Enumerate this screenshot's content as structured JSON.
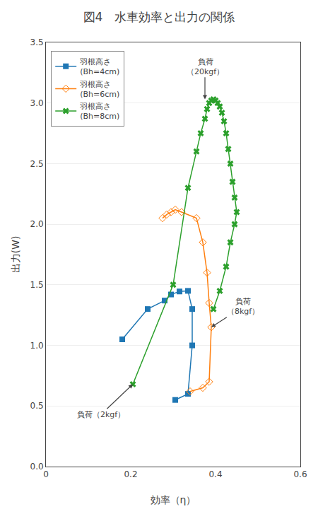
{
  "chart_data": {
    "type": "line",
    "title": "図4　水車効率と出力の関係",
    "x_label": "効率（η）",
    "y_label": "出力(W)",
    "xlim": [
      0,
      0.6
    ],
    "ylim": [
      0.0,
      3.5
    ],
    "xticks": [
      0,
      0.2,
      0.4,
      0.6
    ],
    "yticks": [
      {
        "value": 0.0,
        "label": "0.0"
      },
      0.5,
      {
        "value": 1.0,
        "label": "1.0"
      },
      1.5,
      {
        "value": 2.0,
        "label": "2.0"
      },
      2.5,
      {
        "value": 3.0,
        "label": "3.0"
      },
      3.5
    ],
    "grid": "y",
    "legend": "upper left",
    "series": [
      {
        "name": "羽根高さ\n(Bh=4cm)",
        "marker": "square",
        "x": [
          0.18,
          0.24,
          0.28,
          0.295,
          0.315,
          0.335,
          0.345,
          0.345,
          0.335,
          0.305
        ],
        "values": [
          1.05,
          1.3,
          1.37,
          1.42,
          1.445,
          1.45,
          1.3,
          1.0,
          0.6,
          0.55
        ]
      },
      {
        "name": "羽根高さ\n(Bh=6cm)",
        "marker": "diamond-open",
        "x": [
          0.275,
          0.285,
          0.295,
          0.305,
          0.32,
          0.355,
          0.37,
          0.38,
          0.385,
          0.39,
          0.385,
          0.37,
          0.34
        ],
        "values": [
          2.05,
          2.08,
          2.1,
          2.12,
          2.1,
          2.05,
          1.85,
          1.6,
          1.35,
          1.15,
          0.7,
          0.65,
          0.62
        ]
      },
      {
        "name": "羽根高さ\n(Bh=8cm)",
        "marker": "x",
        "x": [
          0.205,
          0.3,
          0.335,
          0.355,
          0.365,
          0.375,
          0.38,
          0.385,
          0.39,
          0.395,
          0.4,
          0.405,
          0.41,
          0.415,
          0.42,
          0.425,
          0.43,
          0.435,
          0.44,
          0.445,
          0.45,
          0.445,
          0.435,
          0.425,
          0.41,
          0.395
        ],
        "values": [
          0.68,
          1.5,
          2.3,
          2.6,
          2.75,
          2.87,
          2.95,
          3.0,
          3.02,
          3.03,
          3.02,
          3.0,
          2.97,
          2.92,
          2.85,
          2.75,
          2.62,
          2.5,
          2.35,
          2.22,
          2.1,
          2.0,
          1.85,
          1.65,
          1.45,
          1.3
        ]
      }
    ],
    "annotations": [
      {
        "text": "負荷（2kgf）",
        "x": 0.205,
        "y": 0.68,
        "text_x": 0.13,
        "text_y": 0.43
      },
      {
        "text": "負荷\n（8kgf）",
        "x": 0.39,
        "y": 1.15,
        "text_x": 0.465,
        "text_y": 1.32
      },
      {
        "text": "負荷\n（20kgf）",
        "x": 0.375,
        "y": 3.03,
        "text_x": 0.375,
        "text_y": 3.3
      }
    ]
  }
}
